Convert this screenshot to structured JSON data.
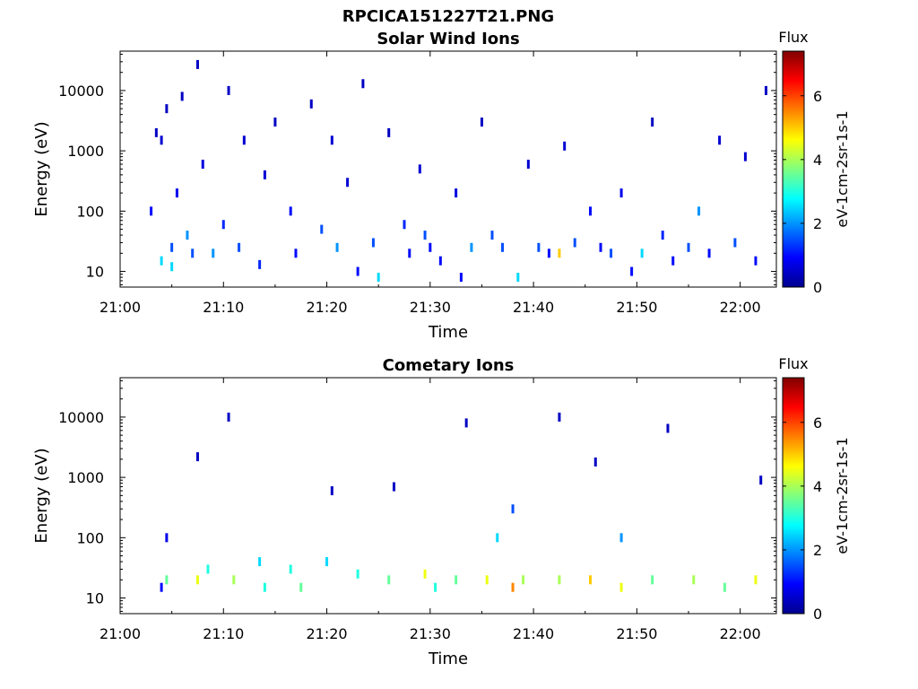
{
  "figure": {
    "title": "RPCICA151227T21.PNG"
  },
  "colorbar": {
    "label": "Flux",
    "unit_label": "eV-1cm-2sr-1s-1",
    "ticks": [
      "0",
      "2",
      "4",
      "6"
    ],
    "range": [
      0,
      7.4
    ],
    "colormap": "jet"
  },
  "chart_data": [
    {
      "type": "heatmap",
      "title": "Solar Wind Ions",
      "xlabel": "Time",
      "ylabel": "Energy (eV)",
      "xticks": [
        "21:00",
        "21:10",
        "21:20",
        "21:30",
        "21:40",
        "21:50",
        "22:00"
      ],
      "yticks": [
        "10",
        "100",
        "1000",
        "10000"
      ],
      "xlim_minutes": [
        0,
        63.5
      ],
      "ylim_eV": [
        5.5,
        45000
      ],
      "y_scale": "log",
      "value_unit": "eV-1cm-2sr-1s-1",
      "cells": [
        {
          "t": 3.0,
          "e": 100,
          "v": 1.0
        },
        {
          "t": 3.5,
          "e": 2000,
          "v": 0.5
        },
        {
          "t": 4.0,
          "e": 15,
          "v": 2.5
        },
        {
          "t": 4.0,
          "e": 1500,
          "v": 0.6
        },
        {
          "t": 4.5,
          "e": 5000,
          "v": 0.5
        },
        {
          "t": 5.0,
          "e": 12,
          "v": 2.5
        },
        {
          "t": 5.0,
          "e": 25,
          "v": 1.5
        },
        {
          "t": 5.5,
          "e": 200,
          "v": 0.8
        },
        {
          "t": 6.0,
          "e": 8000,
          "v": 0.5
        },
        {
          "t": 6.5,
          "e": 40,
          "v": 2.0
        },
        {
          "t": 7.0,
          "e": 20,
          "v": 1.5
        },
        {
          "t": 7.5,
          "e": 27000,
          "v": 0.5
        },
        {
          "t": 8.0,
          "e": 600,
          "v": 0.7
        },
        {
          "t": 9.0,
          "e": 20,
          "v": 2.0
        },
        {
          "t": 10.0,
          "e": 60,
          "v": 1.2
        },
        {
          "t": 10.5,
          "e": 10000,
          "v": 0.5
        },
        {
          "t": 11.5,
          "e": 25,
          "v": 1.5
        },
        {
          "t": 12.0,
          "e": 1500,
          "v": 0.6
        },
        {
          "t": 13.5,
          "e": 13,
          "v": 1.2
        },
        {
          "t": 14.0,
          "e": 400,
          "v": 0.6
        },
        {
          "t": 15.0,
          "e": 3000,
          "v": 0.5
        },
        {
          "t": 16.5,
          "e": 100,
          "v": 1.0
        },
        {
          "t": 17.0,
          "e": 20,
          "v": 1.0
        },
        {
          "t": 18.5,
          "e": 6000,
          "v": 0.5
        },
        {
          "t": 19.5,
          "e": 50,
          "v": 1.5
        },
        {
          "t": 20.5,
          "e": 1500,
          "v": 0.6
        },
        {
          "t": 21.0,
          "e": 25,
          "v": 2.0
        },
        {
          "t": 22.0,
          "e": 300,
          "v": 0.6
        },
        {
          "t": 23.0,
          "e": 10,
          "v": 1.0
        },
        {
          "t": 23.5,
          "e": 13000,
          "v": 0.5
        },
        {
          "t": 24.5,
          "e": 30,
          "v": 1.5
        },
        {
          "t": 25.0,
          "e": 8,
          "v": 2.5
        },
        {
          "t": 26.0,
          "e": 2000,
          "v": 0.5
        },
        {
          "t": 27.5,
          "e": 60,
          "v": 1.2
        },
        {
          "t": 28.0,
          "e": 20,
          "v": 1.0
        },
        {
          "t": 29.0,
          "e": 500,
          "v": 0.6
        },
        {
          "t": 29.5,
          "e": 40,
          "v": 1.5
        },
        {
          "t": 30.0,
          "e": 25,
          "v": 1.0
        },
        {
          "t": 31.0,
          "e": 15,
          "v": 1.0
        },
        {
          "t": 32.5,
          "e": 200,
          "v": 0.7
        },
        {
          "t": 33.0,
          "e": 8,
          "v": 1.0
        },
        {
          "t": 34.0,
          "e": 25,
          "v": 2.0
        },
        {
          "t": 35.0,
          "e": 3000,
          "v": 0.5
        },
        {
          "t": 36.0,
          "e": 40,
          "v": 1.5
        },
        {
          "t": 37.0,
          "e": 25,
          "v": 1.5
        },
        {
          "t": 38.5,
          "e": 8,
          "v": 2.5
        },
        {
          "t": 39.5,
          "e": 600,
          "v": 0.6
        },
        {
          "t": 40.5,
          "e": 25,
          "v": 1.5
        },
        {
          "t": 41.5,
          "e": 20,
          "v": 1.0
        },
        {
          "t": 42.5,
          "e": 20,
          "v": 5.0
        },
        {
          "t": 43.0,
          "e": 1200,
          "v": 0.6
        },
        {
          "t": 44.0,
          "e": 30,
          "v": 1.5
        },
        {
          "t": 45.5,
          "e": 100,
          "v": 1.0
        },
        {
          "t": 46.5,
          "e": 25,
          "v": 1.0
        },
        {
          "t": 47.5,
          "e": 20,
          "v": 1.5
        },
        {
          "t": 48.5,
          "e": 200,
          "v": 0.8
        },
        {
          "t": 49.5,
          "e": 10,
          "v": 1.0
        },
        {
          "t": 50.5,
          "e": 20,
          "v": 2.5
        },
        {
          "t": 51.5,
          "e": 3000,
          "v": 0.5
        },
        {
          "t": 52.5,
          "e": 40,
          "v": 1.2
        },
        {
          "t": 53.5,
          "e": 15,
          "v": 1.0
        },
        {
          "t": 55.0,
          "e": 25,
          "v": 1.5
        },
        {
          "t": 56.0,
          "e": 100,
          "v": 2.0
        },
        {
          "t": 57.0,
          "e": 20,
          "v": 1.0
        },
        {
          "t": 58.0,
          "e": 1500,
          "v": 0.6
        },
        {
          "t": 59.5,
          "e": 30,
          "v": 1.5
        },
        {
          "t": 60.5,
          "e": 800,
          "v": 0.6
        },
        {
          "t": 61.5,
          "e": 15,
          "v": 1.0
        },
        {
          "t": 62.5,
          "e": 10000,
          "v": 0.5
        }
      ]
    },
    {
      "type": "heatmap",
      "title": "Cometary Ions",
      "xlabel": "Time",
      "ylabel": "Energy (eV)",
      "xticks": [
        "21:00",
        "21:10",
        "21:20",
        "21:30",
        "21:40",
        "21:50",
        "22:00"
      ],
      "yticks": [
        "10",
        "100",
        "1000",
        "10000"
      ],
      "xlim_minutes": [
        0,
        63.5
      ],
      "ylim_eV": [
        5.5,
        45000
      ],
      "y_scale": "log",
      "value_unit": "eV-1cm-2sr-1s-1",
      "cells": [
        {
          "t": 4.0,
          "e": 15,
          "v": 1.0
        },
        {
          "t": 4.5,
          "e": 20,
          "v": 3.5
        },
        {
          "t": 4.5,
          "e": 100,
          "v": 0.8
        },
        {
          "t": 7.5,
          "e": 20,
          "v": 4.5
        },
        {
          "t": 7.5,
          "e": 2200,
          "v": 0.5
        },
        {
          "t": 8.5,
          "e": 30,
          "v": 3.0
        },
        {
          "t": 10.5,
          "e": 10000,
          "v": 0.5
        },
        {
          "t": 11.0,
          "e": 20,
          "v": 4.0
        },
        {
          "t": 13.5,
          "e": 40,
          "v": 2.5
        },
        {
          "t": 14.0,
          "e": 15,
          "v": 3.0
        },
        {
          "t": 16.5,
          "e": 30,
          "v": 3.0
        },
        {
          "t": 17.5,
          "e": 15,
          "v": 3.5
        },
        {
          "t": 20.0,
          "e": 40,
          "v": 2.5
        },
        {
          "t": 20.5,
          "e": 600,
          "v": 0.5
        },
        {
          "t": 23.0,
          "e": 25,
          "v": 3.0
        },
        {
          "t": 26.0,
          "e": 20,
          "v": 3.5
        },
        {
          "t": 26.5,
          "e": 700,
          "v": 0.5
        },
        {
          "t": 29.5,
          "e": 25,
          "v": 4.5
        },
        {
          "t": 30.5,
          "e": 15,
          "v": 3.0
        },
        {
          "t": 32.5,
          "e": 20,
          "v": 3.5
        },
        {
          "t": 33.5,
          "e": 8000,
          "v": 0.5
        },
        {
          "t": 35.5,
          "e": 20,
          "v": 4.5
        },
        {
          "t": 36.5,
          "e": 100,
          "v": 2.5
        },
        {
          "t": 38.0,
          "e": 15,
          "v": 5.5
        },
        {
          "t": 38.0,
          "e": 300,
          "v": 1.5
        },
        {
          "t": 39.0,
          "e": 20,
          "v": 4.0
        },
        {
          "t": 42.5,
          "e": 20,
          "v": 4.0
        },
        {
          "t": 42.5,
          "e": 10000,
          "v": 0.5
        },
        {
          "t": 45.5,
          "e": 20,
          "v": 5.0
        },
        {
          "t": 46.0,
          "e": 1800,
          "v": 0.5
        },
        {
          "t": 48.5,
          "e": 15,
          "v": 4.5
        },
        {
          "t": 48.5,
          "e": 100,
          "v": 2.0
        },
        {
          "t": 51.5,
          "e": 20,
          "v": 3.5
        },
        {
          "t": 53.0,
          "e": 6500,
          "v": 0.5
        },
        {
          "t": 55.5,
          "e": 20,
          "v": 4.0
        },
        {
          "t": 58.5,
          "e": 15,
          "v": 3.5
        },
        {
          "t": 61.5,
          "e": 20,
          "v": 4.5
        },
        {
          "t": 62.0,
          "e": 900,
          "v": 0.5
        }
      ]
    }
  ]
}
